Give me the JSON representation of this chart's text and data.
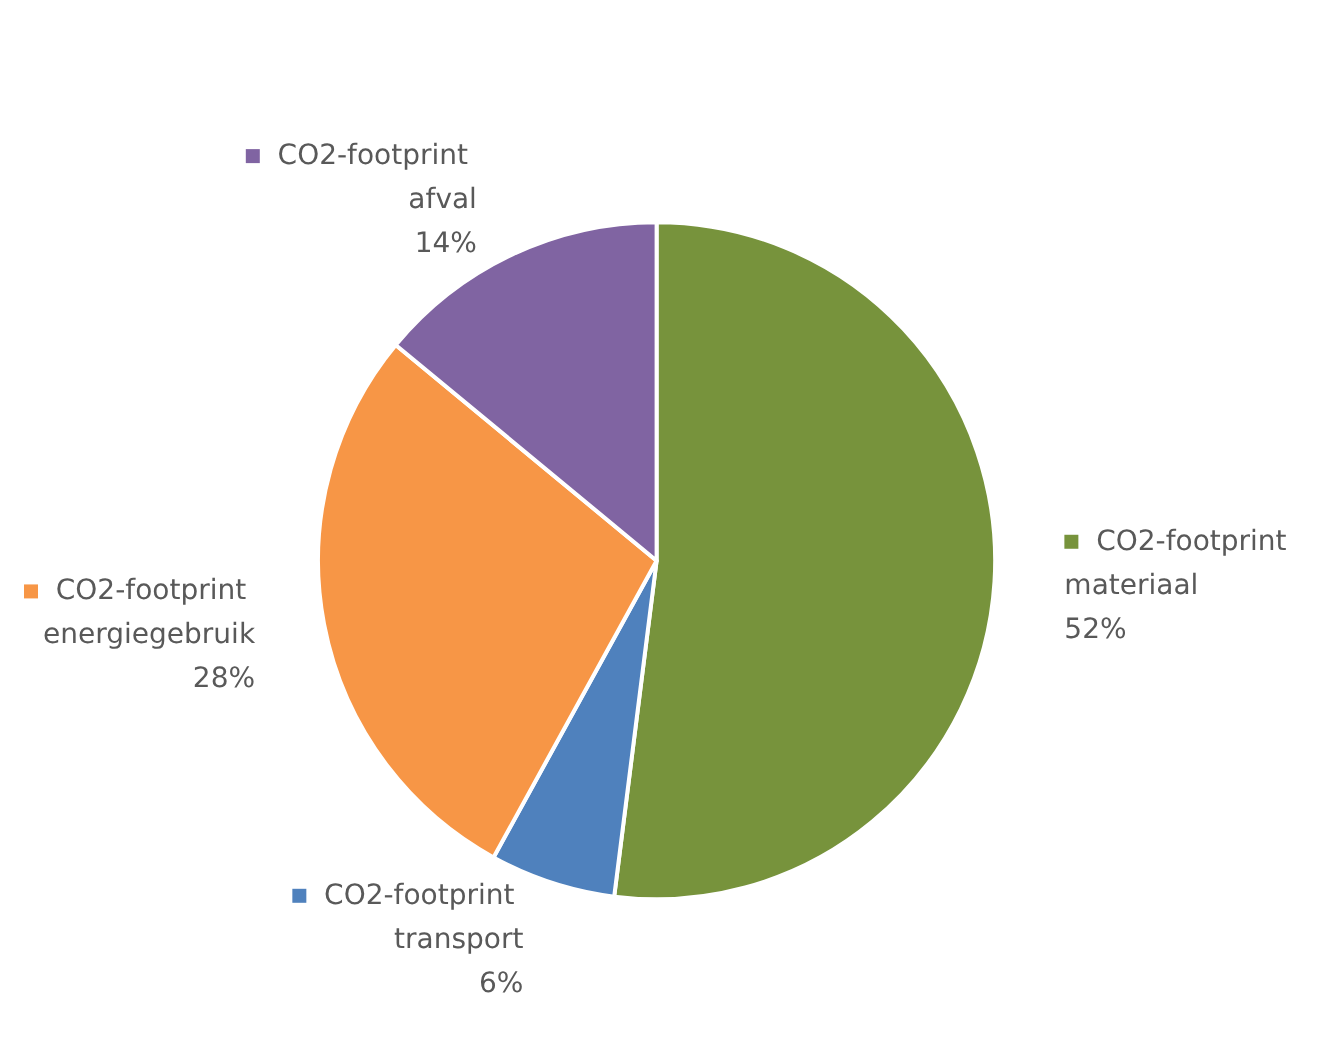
{
  "chart_data": {
    "type": "pie",
    "categories": [
      "CO2-footprint materiaal",
      "CO2-footprint transport",
      "CO2-footprint energiegebruik",
      "CO2-footprint afval"
    ],
    "values": [
      52,
      6,
      28,
      14
    ],
    "colors": [
      "#77933c",
      "#4f81bd",
      "#f79646",
      "#8064a2"
    ],
    "value_labels": [
      "52%",
      "6%",
      "28%",
      "14%"
    ],
    "legend": "right"
  }
}
